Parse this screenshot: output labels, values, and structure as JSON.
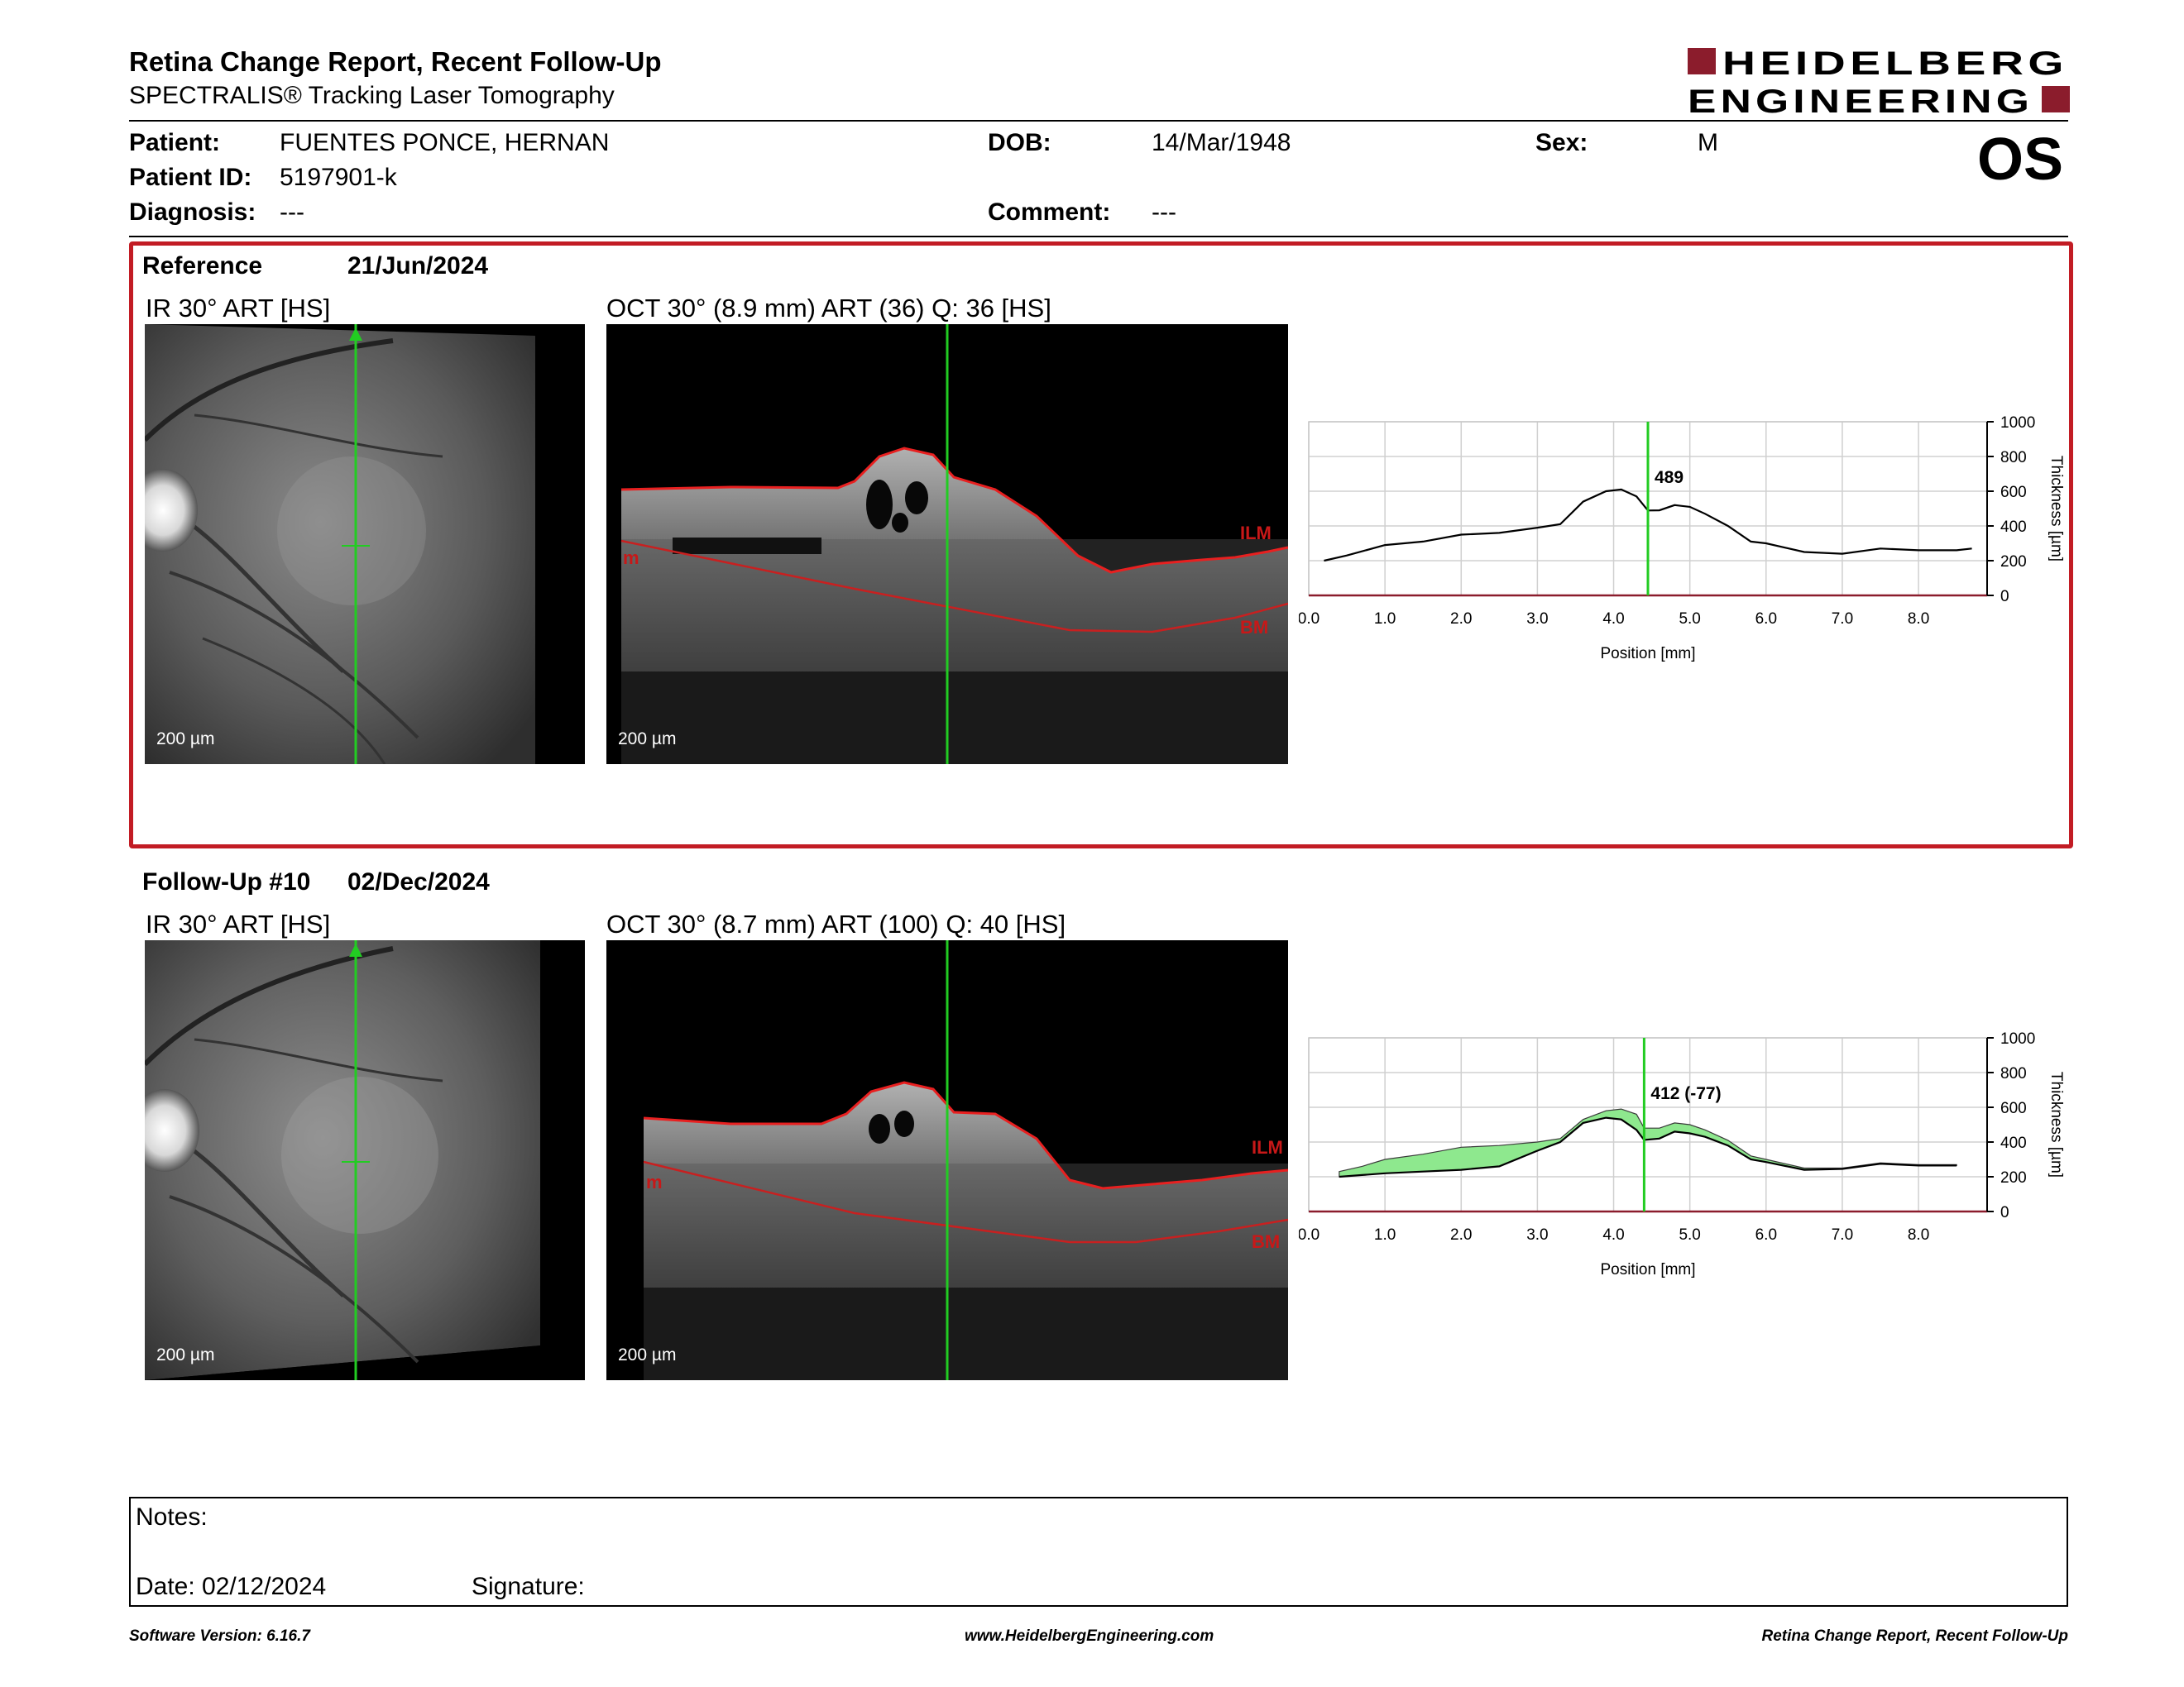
{
  "header": {
    "title": "Retina Change Report, Recent Follow-Up",
    "subtitle": "SPECTRALIS® Tracking Laser Tomography",
    "logo_line1": "HEIDELBERG",
    "logo_line2": "ENGINEERING",
    "brand_color": "#8b1c2c"
  },
  "patient": {
    "patient_label": "Patient:",
    "patient_value": "FUENTES PONCE, HERNAN",
    "id_label": "Patient ID:",
    "id_value": "5197901-k",
    "diagnosis_label": "Diagnosis:",
    "diagnosis_value": "---",
    "dob_label": "DOB:",
    "dob_value": "14/Mar/1948",
    "comment_label": "Comment:",
    "comment_value": "---",
    "sex_label": "Sex:",
    "sex_value": "M",
    "eye": "OS"
  },
  "reference": {
    "label": "Reference",
    "date": "21/Jun/2024",
    "ir_caption": "IR 30° ART [HS]",
    "oct_caption": "OCT 30° (8.9 mm) ART (36) Q: 36 [HS]",
    "ir_scale": "200 µm",
    "oct_scale": "200 µm",
    "ilm_label": "ILM",
    "bm_label": "BM",
    "rpe_label": "m",
    "box_color": "#c21c24"
  },
  "followup": {
    "label": "Follow-Up #10",
    "date": "02/Dec/2024",
    "ir_caption": "IR 30° ART [HS]",
    "oct_caption": "OCT 30° (8.7 mm) ART (100) Q: 40 [HS]",
    "ir_scale": "200 µm",
    "oct_scale": "200 µm",
    "ilm_label": "ILM",
    "bm_label": "BM",
    "rpe_label": "m"
  },
  "chart_data": [
    {
      "type": "line",
      "xlabel": "Position [mm]",
      "ylabel": "Thickness [µm]",
      "xlim": [
        0,
        8.9
      ],
      "ylim": [
        0,
        1000
      ],
      "x_ticks": [
        "0.0",
        "1.0",
        "2.0",
        "3.0",
        "4.0",
        "5.0",
        "6.0",
        "7.0",
        "8.0"
      ],
      "y_ticks": [
        "0",
        "200",
        "400",
        "600",
        "800",
        "1000"
      ],
      "grid": true,
      "marker_x": 4.45,
      "marker_label": "489",
      "marker_color": "#22cc22",
      "series": [
        {
          "x": [
            0.2,
            0.5,
            1.0,
            1.5,
            2.0,
            2.5,
            3.0,
            3.3,
            3.6,
            3.9,
            4.1,
            4.3,
            4.45,
            4.6,
            4.8,
            5.0,
            5.2,
            5.5,
            5.8,
            6.0,
            6.5,
            7.0,
            7.5,
            8.0,
            8.5,
            8.7
          ],
          "y": [
            200,
            230,
            290,
            310,
            350,
            360,
            390,
            410,
            540,
            600,
            610,
            570,
            489,
            490,
            520,
            510,
            470,
            400,
            310,
            300,
            250,
            240,
            270,
            260,
            260,
            270
          ]
        }
      ]
    },
    {
      "type": "area",
      "xlabel": "Position [mm]",
      "ylabel": "Thickness [µm]",
      "xlim": [
        0,
        8.9
      ],
      "ylim": [
        0,
        1000
      ],
      "x_ticks": [
        "0.0",
        "1.0",
        "2.0",
        "3.0",
        "4.0",
        "5.0",
        "6.0",
        "7.0",
        "8.0"
      ],
      "y_ticks": [
        "0",
        "200",
        "400",
        "600",
        "800",
        "1000"
      ],
      "grid": true,
      "marker_x": 4.4,
      "marker_label": "412 (-77)",
      "marker_color": "#22cc22",
      "fill_color": "#8ee88e",
      "series": [
        {
          "x": [
            0.4,
            0.7,
            1.0,
            1.5,
            2.0,
            2.5,
            3.0,
            3.3,
            3.6,
            3.9,
            4.1,
            4.3,
            4.4,
            4.6,
            4.8,
            5.0,
            5.2,
            5.5,
            5.8,
            6.0,
            6.5,
            7.0,
            7.5,
            8.0,
            8.5
          ],
          "y": [
            230,
            260,
            300,
            330,
            370,
            380,
            400,
            420,
            530,
            580,
            590,
            560,
            480,
            480,
            510,
            500,
            470,
            410,
            320,
            300,
            250,
            250,
            280,
            270,
            270
          ]
        },
        {
          "x": [
            0.4,
            0.7,
            1.0,
            1.5,
            2.0,
            2.5,
            3.0,
            3.3,
            3.6,
            3.9,
            4.1,
            4.3,
            4.4,
            4.6,
            4.8,
            5.0,
            5.2,
            5.5,
            5.8,
            6.0,
            6.5,
            7.0,
            7.5,
            8.0,
            8.5
          ],
          "y": [
            200,
            210,
            220,
            230,
            240,
            260,
            350,
            400,
            510,
            540,
            530,
            470,
            412,
            420,
            460,
            450,
            430,
            380,
            300,
            285,
            240,
            245,
            275,
            265,
            265
          ]
        }
      ]
    }
  ],
  "notes": {
    "notes_label": "Notes:",
    "date_label": "Date: 02/12/2024",
    "signature_label": "Signature:"
  },
  "footer": {
    "software": "Software Version: 6.16.7",
    "website": "www.HeidelbergEngineering.com",
    "report_name": "Retina Change Report, Recent Follow-Up"
  }
}
